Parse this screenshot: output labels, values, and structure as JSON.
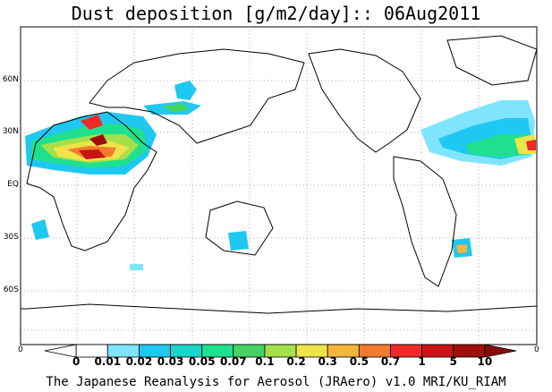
{
  "title": "Dust deposition [g/m2/day]:: 06Aug2011",
  "footer": "The Japanese Reanalysis for Aerosol (JRAero) v1.0 MRI/KU_RIAM",
  "lat_labels": [
    "60N",
    "30N",
    "EQ",
    "30S",
    "60S"
  ],
  "axis_zero_left": "0",
  "axis_zero_right": "0",
  "colorbar": {
    "labels": [
      "0",
      "0.01",
      "0.02",
      "0.03",
      "0.05",
      "0.07",
      "0.1",
      "0.2",
      "0.3",
      "0.5",
      "0.7",
      "1",
      "5",
      "10"
    ],
    "colors": [
      "#ffffff",
      "#ffffff",
      "#7fe5ff",
      "#1fc8f0",
      "#1ad6c8",
      "#1fe08e",
      "#44d463",
      "#a5e04b",
      "#ede44a",
      "#f5b53b",
      "#f47b2d",
      "#ed2a23",
      "#c81414",
      "#a00e0e",
      "#8a0a0a"
    ]
  }
}
